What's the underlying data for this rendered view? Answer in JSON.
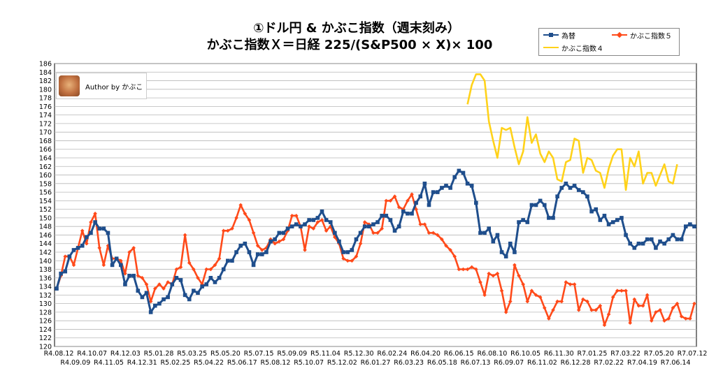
{
  "chart_data": {
    "type": "line",
    "title": "①ドル円 & かぶこ指数（週末刻み）",
    "subtitle": "かぶこ指数Ｘ＝日経 225/(S&P500 × X)× 100",
    "author_label": "Author by かぶこ",
    "ylim": [
      120,
      186
    ],
    "y_ticks": [
      120,
      122,
      124,
      126,
      128,
      130,
      132,
      134,
      136,
      138,
      140,
      142,
      144,
      146,
      148,
      150,
      152,
      154,
      156,
      158,
      160,
      162,
      164,
      166,
      168,
      170,
      172,
      174,
      176,
      178,
      180,
      182,
      184,
      186
    ],
    "x_ticks_top": [
      "R4.08.12",
      "R4.10.07",
      "R4.12.03",
      "R5.01.28",
      "R5.03.25",
      "R5.05.20",
      "R5.07.15",
      "R5.09.09",
      "R5.11.04",
      "R5.12.30",
      "R6.02.24",
      "R6.04.20",
      "R6.06.15",
      "R6.08.10",
      "R6.10.05",
      "R6.11.30",
      "R7.01.25",
      "R7.03.22",
      "R7.05.20",
      "R7.07.12"
    ],
    "x_ticks_bottom": [
      "R4.09.09",
      "R4.11.05",
      "R4.12.31",
      "R5.02.25",
      "R5.04.22",
      "R5.06.17",
      "R5.08.12",
      "R5.10.07",
      "R5.12.02",
      "R6.01.27",
      "R6.03.23",
      "R6.05.18",
      "R6.07.13",
      "R6.09.07",
      "R6.11.02",
      "R6.12.28",
      "R7.02.22",
      "R7.04.19",
      "R7.06.14"
    ],
    "grid": true,
    "legend_placement": "top-right",
    "series": [
      {
        "name": "為替",
        "color": "#1f4e8c",
        "marker": "square",
        "start_index": 0,
        "values": [
          133.5,
          137.0,
          137.5,
          141.0,
          142.5,
          143.0,
          143.5,
          145.5,
          146.5,
          149.0,
          147.5,
          147.5,
          146.5,
          139.0,
          140.5,
          139.0,
          134.5,
          136.5,
          136.5,
          133.0,
          131.5,
          132.5,
          128.0,
          129.5,
          130.0,
          131.0,
          131.5,
          134.5,
          136.0,
          135.5,
          132.0,
          131.0,
          133.0,
          132.5,
          134.0,
          134.5,
          136.0,
          135.0,
          136.0,
          138.0,
          140.0,
          140.0,
          142.0,
          143.5,
          144.0,
          142.0,
          139.0,
          141.5,
          141.5,
          142.0,
          144.5,
          145.0,
          146.5,
          146.5,
          147.5,
          148.0,
          148.5,
          148.0,
          148.5,
          149.5,
          149.5,
          150.0,
          151.5,
          149.5,
          149.0,
          146.5,
          144.5,
          142.0,
          142.0,
          142.5,
          145.0,
          146.5,
          148.0,
          148.0,
          148.5,
          149.0,
          150.5,
          150.5,
          149.5,
          147.0,
          148.0,
          151.5,
          151.0,
          151.0,
          153.5,
          155.0,
          158.0,
          153.0,
          156.0,
          156.0,
          157.0,
          157.5,
          157.0,
          159.5,
          161.0,
          160.5,
          158.0,
          157.5,
          153.5,
          146.5,
          146.5,
          147.5,
          144.5,
          146.0,
          142.0,
          141.0,
          144.0,
          142.0,
          149.0,
          149.5,
          149.0,
          153.0,
          153.0,
          154.0,
          153.0,
          150.0,
          150.0,
          155.0,
          157.0,
          158.0,
          157.0,
          157.5,
          156.5,
          156.0,
          155.0,
          151.5,
          152.0,
          149.5,
          150.5,
          148.5,
          149.0,
          149.5,
          150.0,
          146.0,
          144.0,
          143.0,
          144.0,
          144.0,
          145.0,
          145.0,
          143.0,
          144.5,
          144.0,
          145.0,
          146.0,
          145.0,
          145.0,
          148.0,
          148.5,
          148.0
        ]
      },
      {
        "name": "かぶこ指数５",
        "color": "#ff4a1a",
        "marker": "diamond",
        "start_index": 0,
        "values": [
          133.5,
          136.5,
          141.0,
          141.0,
          139.0,
          143.0,
          147.0,
          144.0,
          149.0,
          151.0,
          143.0,
          139.0,
          143.5,
          140.5,
          140.5,
          140.0,
          137.0,
          142.0,
          143.0,
          136.5,
          136.0,
          134.5,
          130.5,
          133.5,
          134.5,
          133.5,
          135.0,
          134.5,
          138.0,
          138.5,
          146.0,
          139.5,
          138.0,
          136.0,
          134.5,
          138.0,
          138.0,
          139.0,
          140.5,
          147.0,
          147.0,
          147.5,
          150.0,
          153.0,
          151.0,
          149.5,
          146.5,
          143.5,
          142.5,
          143.0,
          145.0,
          144.0,
          144.5,
          145.0,
          147.0,
          150.5,
          150.5,
          148.0,
          142.5,
          148.0,
          147.5,
          149.0,
          149.5,
          147.0,
          148.0,
          145.5,
          144.0,
          140.5,
          140.0,
          140.0,
          141.0,
          144.0,
          149.0,
          148.5,
          146.5,
          146.5,
          147.5,
          154.0,
          154.0,
          155.0,
          152.5,
          152.0,
          154.0,
          155.5,
          152.0,
          148.5,
          148.5,
          146.5,
          146.5,
          146.0,
          145.0,
          143.5,
          142.5,
          141.0,
          138.0,
          138.0,
          138.0,
          138.5,
          138.0,
          135.0,
          132.0,
          137.0,
          136.5,
          137.0,
          133.0,
          128.0,
          130.5,
          139.0,
          136.5,
          134.5,
          130.5,
          133.0,
          132.0,
          131.5,
          129.0,
          126.5,
          128.5,
          130.5,
          130.5,
          135.0,
          134.5,
          134.5,
          128.5,
          131.0,
          130.5,
          128.5,
          128.5,
          129.5,
          125.0,
          127.5,
          131.5,
          133.0,
          133.0,
          133.0,
          125.5,
          131.0,
          129.5,
          129.5,
          132.0,
          126.0,
          128.0,
          128.5,
          126.0,
          126.5,
          129.0,
          130.0,
          127.0,
          126.5,
          126.5,
          130.0
        ]
      },
      {
        "name": "かぶこ指数４",
        "color": "#ffd21a",
        "marker": "none",
        "start_index": 96,
        "values": [
          176.5,
          181.0,
          183.5,
          183.5,
          182.0,
          172.5,
          168.0,
          164.0,
          171.0,
          170.5,
          171.0,
          166.5,
          162.5,
          165.5,
          173.5,
          167.5,
          169.5,
          165.0,
          163.0,
          165.5,
          164.0,
          159.0,
          158.5,
          163.0,
          163.5,
          168.5,
          168.0,
          160.5,
          164.0,
          163.5,
          161.0,
          160.5,
          157.0,
          161.5,
          164.5,
          166.0,
          166.0,
          156.5,
          164.0,
          162.0,
          165.5,
          158.0,
          160.5,
          160.5,
          157.5,
          160.0,
          162.5,
          158.5,
          158.0,
          162.5
        ]
      }
    ]
  }
}
